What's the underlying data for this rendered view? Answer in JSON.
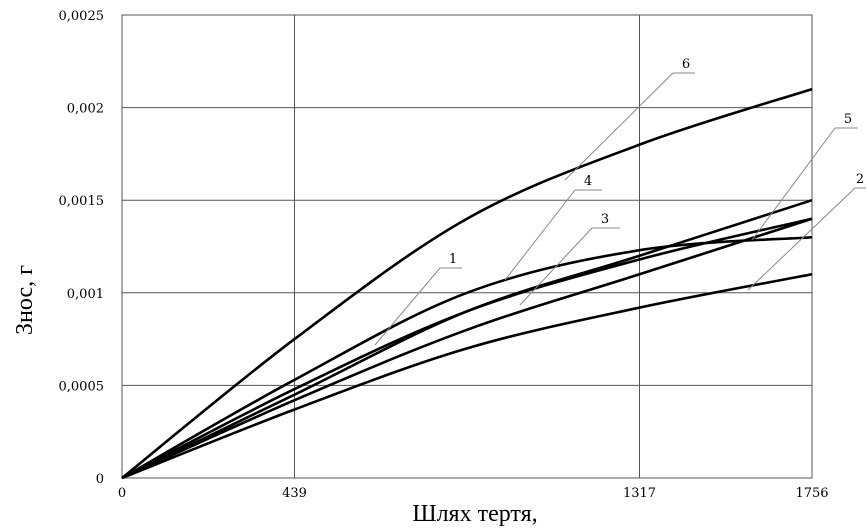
{
  "chart_data": {
    "type": "line",
    "xlabel": "Шлях тертя,",
    "ylabel": "Знос, г",
    "x_ticks": [
      "0",
      "439",
      "1317",
      "1756"
    ],
    "y_ticks": [
      "0",
      "0,0005",
      "0,001",
      "0,0015",
      "0,002",
      "0,0025"
    ],
    "xlim": [
      0,
      1756
    ],
    "ylim": [
      0,
      0.0025
    ],
    "grid": true,
    "series": [
      {
        "name": "1",
        "x": [
          0,
          439,
          878,
          1317,
          1756
        ],
        "y": [
          0,
          0.00048,
          0.0009,
          0.00118,
          0.0014
        ]
      },
      {
        "name": "2",
        "x": [
          0,
          439,
          878,
          1317,
          1756
        ],
        "y": [
          0,
          0.00037,
          0.0007,
          0.00092,
          0.0011
        ]
      },
      {
        "name": "3",
        "x": [
          0,
          439,
          878,
          1317,
          1756
        ],
        "y": [
          0,
          0.00042,
          0.0008,
          0.0011,
          0.0014
        ]
      },
      {
        "name": "4",
        "x": [
          0,
          439,
          878,
          1317,
          1756
        ],
        "y": [
          0,
          0.00053,
          0.001,
          0.00123,
          0.0013
        ]
      },
      {
        "name": "5",
        "x": [
          0,
          439,
          878,
          1317,
          1756
        ],
        "y": [
          0,
          0.00045,
          0.0009,
          0.0012,
          0.0015
        ]
      },
      {
        "name": "6",
        "x": [
          0,
          439,
          878,
          1317,
          1756
        ],
        "y": [
          0,
          0.00075,
          0.0014,
          0.0018,
          0.0021
        ]
      }
    ]
  }
}
